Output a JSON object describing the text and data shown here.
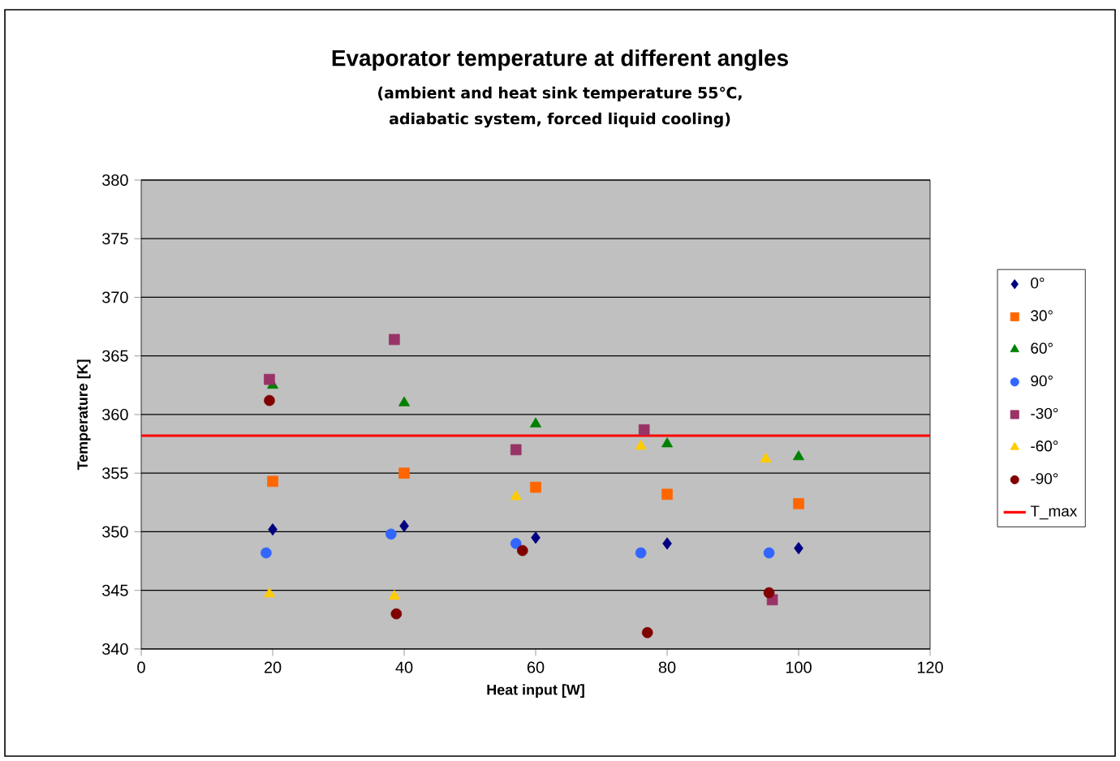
{
  "chart_data": {
    "type": "scatter",
    "title": "Evaporator temperature at different angles",
    "subtitle": "(ambient and heat sink temperature 55℃, adiabatic  system, forced liquid cooling)",
    "xlabel": "Heat input [W]",
    "ylabel": "Temperature [K]",
    "xlim": [
      0,
      120
    ],
    "xticks": [
      0,
      20,
      40,
      60,
      80,
      100,
      120
    ],
    "ylim": [
      340,
      380
    ],
    "yticks": [
      340,
      345,
      350,
      355,
      360,
      365,
      370,
      375,
      380
    ],
    "grid": "y",
    "legend": "right",
    "series": [
      {
        "name": "0°",
        "color": "#000080",
        "marker": "diamond",
        "x": [
          20,
          40,
          60,
          80,
          100
        ],
        "values": [
          350.2,
          350.5,
          349.5,
          349.0,
          348.6
        ]
      },
      {
        "name": "30°",
        "color": "#ff6600",
        "marker": "square",
        "x": [
          20,
          40,
          60,
          80,
          100
        ],
        "values": [
          354.3,
          355.0,
          353.8,
          353.2,
          352.4
        ]
      },
      {
        "name": "60°",
        "color": "#008000",
        "marker": "triangle",
        "x": [
          20,
          40,
          60,
          80,
          100
        ],
        "values": [
          362.5,
          361.0,
          359.2,
          357.5,
          356.4
        ]
      },
      {
        "name": "90°",
        "color": "#3366ff",
        "marker": "circle",
        "x": [
          19,
          38,
          57,
          76,
          95.5
        ],
        "values": [
          348.2,
          349.8,
          349.0,
          348.2,
          348.2
        ]
      },
      {
        "name": "-30°",
        "color": "#993366",
        "marker": "square",
        "x": [
          19.5,
          38.5,
          57,
          76.5,
          96
        ],
        "values": [
          363.0,
          366.4,
          357.0,
          358.7,
          344.2
        ]
      },
      {
        "name": "-60°",
        "color": "#ffcc00",
        "marker": "triangle",
        "x": [
          19.5,
          38.5,
          57,
          76,
          95
        ],
        "values": [
          344.7,
          344.5,
          353.0,
          357.3,
          356.2
        ]
      },
      {
        "name": "-90°",
        "color": "#800000",
        "marker": "circle",
        "x": [
          19.5,
          38.8,
          58,
          77,
          95.5
        ],
        "values": [
          361.2,
          343.0,
          348.4,
          341.4,
          344.8
        ]
      }
    ],
    "ref_lines": [
      {
        "axis": "y",
        "value": 358.2,
        "label": "T_max",
        "color": "#ff0000"
      }
    ]
  }
}
